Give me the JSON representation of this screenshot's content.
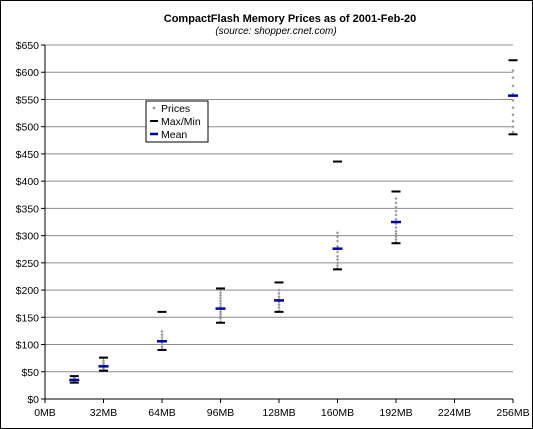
{
  "chart_data": {
    "type": "scatter",
    "title": "CompactFlash Memory Prices as of 2001-Feb-20",
    "subtitle": "(source: shopper.cnet.com)",
    "x_ticks": [
      "0MB",
      "32MB",
      "64MB",
      "96MB",
      "128MB",
      "160MB",
      "192MB",
      "224MB",
      "256MB"
    ],
    "y_ticks": [
      "$0",
      "$50",
      "$100",
      "$150",
      "$200",
      "$250",
      "$300",
      "$350",
      "$400",
      "$450",
      "$500",
      "$550",
      "$600",
      "$650"
    ],
    "xlim": [
      0,
      256
    ],
    "ylim": [
      0,
      650
    ],
    "grid": "horizontal",
    "legend": {
      "placement": "upper-left",
      "entries": [
        {
          "key": "prices",
          "label": "Prices",
          "color": "#9a9a9a",
          "marker": "diamond"
        },
        {
          "key": "maxmin",
          "label": "Max/Min",
          "color": "#000000",
          "marker": "dash"
        },
        {
          "key": "mean",
          "label": "Mean",
          "color": "#0000a0",
          "marker": "dash"
        }
      ]
    },
    "series": [
      {
        "x": 16,
        "min": 30,
        "max": 42,
        "mean": 35,
        "prices": [
          31,
          33,
          35,
          37,
          39,
          41
        ]
      },
      {
        "x": 32,
        "min": 52,
        "max": 76,
        "mean": 60,
        "prices": [
          53,
          56,
          58,
          60,
          63,
          66,
          70,
          75
        ]
      },
      {
        "x": 64,
        "min": 90,
        "max": 160,
        "mean": 106,
        "prices": [
          92,
          96,
          100,
          104,
          108,
          113,
          118,
          124
        ]
      },
      {
        "x": 96,
        "min": 140,
        "max": 203,
        "mean": 166,
        "prices": [
          142,
          148,
          152,
          156,
          160,
          165,
          170,
          175,
          180,
          185,
          190,
          195,
          200
        ]
      },
      {
        "x": 128,
        "min": 160,
        "max": 214,
        "mean": 181,
        "prices": [
          162,
          168,
          173,
          178,
          183,
          188,
          194,
          200
        ]
      },
      {
        "x": 160,
        "min": 238,
        "max": 436,
        "mean": 276,
        "prices": [
          240,
          245,
          250,
          256,
          262,
          270,
          280,
          290,
          298,
          305
        ]
      },
      {
        "x": 192,
        "min": 286,
        "max": 381,
        "mean": 325,
        "prices": [
          288,
          293,
          298,
          303,
          308,
          315,
          322,
          330,
          338,
          345,
          352,
          360,
          368
        ]
      },
      {
        "x": 256,
        "min": 486,
        "max": 622,
        "mean": 557,
        "prices": [
          490,
          500,
          510,
          522,
          535,
          548,
          560,
          575,
          590,
          603
        ]
      }
    ]
  }
}
